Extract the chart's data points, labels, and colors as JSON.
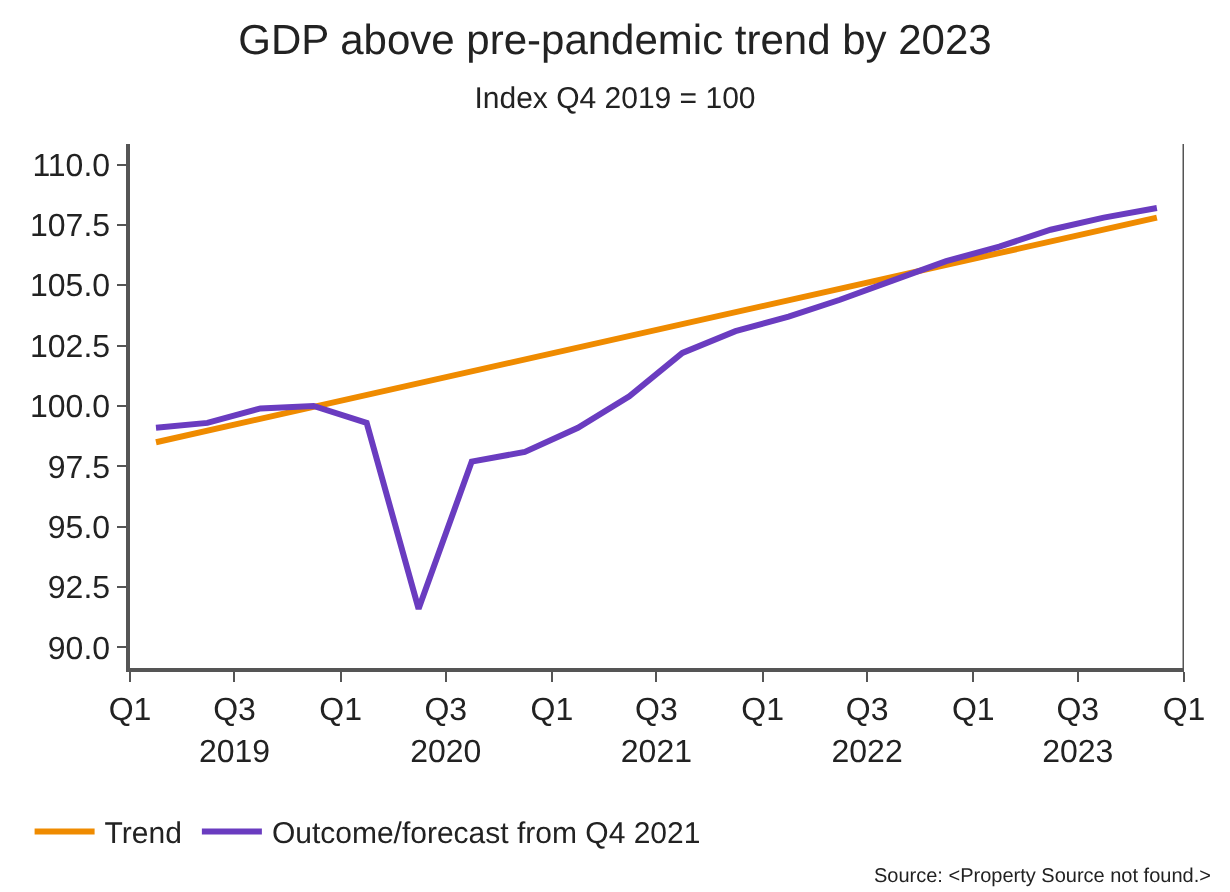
{
  "chart_data": {
    "type": "line",
    "title": "GDP above pre-pandemic trend by 2023",
    "subtitle": "Index Q4 2019 = 100",
    "series": [
      {
        "name": "Trend",
        "color": "#ef8b00",
        "x": [
          "2019-02-15",
          "2023-11-15"
        ],
        "values": [
          98.5,
          107.8
        ]
      },
      {
        "name": "Outcome/forecast from Q4 2021",
        "color": "#6a3cc0",
        "x": [
          "2019-02-15",
          "2019-05-15",
          "2019-08-15",
          "2019-11-15",
          "2020-02-15",
          "2020-05-15",
          "2020-08-15",
          "2020-11-15",
          "2021-02-15",
          "2021-05-15",
          "2021-08-15",
          "2021-11-15",
          "2022-02-15",
          "2022-05-15",
          "2022-08-15",
          "2022-11-15",
          "2023-02-15",
          "2023-05-15",
          "2023-08-15",
          "2023-11-15"
        ],
        "values": [
          99.1,
          99.3,
          99.9,
          100.0,
          99.3,
          91.6,
          97.7,
          98.1,
          99.1,
          100.4,
          102.2,
          103.1,
          103.7,
          104.4,
          105.2,
          106.0,
          106.6,
          107.3,
          107.8,
          108.2
        ]
      }
    ],
    "xlim": [
      "2019-01-01",
      "2024-01-01"
    ],
    "xticks": [
      {
        "value": "2019-01-01",
        "label": "Q1"
      },
      {
        "value": "2019-07-01",
        "label": "Q3\n2019"
      },
      {
        "value": "2020-01-01",
        "label": "Q1"
      },
      {
        "value": "2020-07-01",
        "label": "Q3\n2020"
      },
      {
        "value": "2021-01-01",
        "label": "Q1"
      },
      {
        "value": "2021-07-01",
        "label": "Q3\n2021"
      },
      {
        "value": "2022-01-01",
        "label": "Q1"
      },
      {
        "value": "2022-07-01",
        "label": "Q3\n2022"
      },
      {
        "value": "2023-01-01",
        "label": "Q1"
      },
      {
        "value": "2023-07-01",
        "label": "Q3\n2023"
      },
      {
        "value": "2024-01-01",
        "label": "Q1"
      }
    ],
    "ylim": [
      89.15,
      110.85
    ],
    "yticks": [
      {
        "value": 90,
        "label": "90.0"
      },
      {
        "value": 92.5,
        "label": "92.5"
      },
      {
        "value": 95,
        "label": "95.0"
      },
      {
        "value": 97.5,
        "label": "97.5"
      },
      {
        "value": 100,
        "label": "100.0"
      },
      {
        "value": 102.5,
        "label": "102.5"
      },
      {
        "value": 105,
        "label": "105.0"
      },
      {
        "value": 107.5,
        "label": "107.5"
      },
      {
        "value": 110,
        "label": "110.0"
      }
    ],
    "legend": "bottom left",
    "marker": "none",
    "line_style": "solid",
    "annotations": [
      "Source: <Property Source not found.>"
    ]
  }
}
